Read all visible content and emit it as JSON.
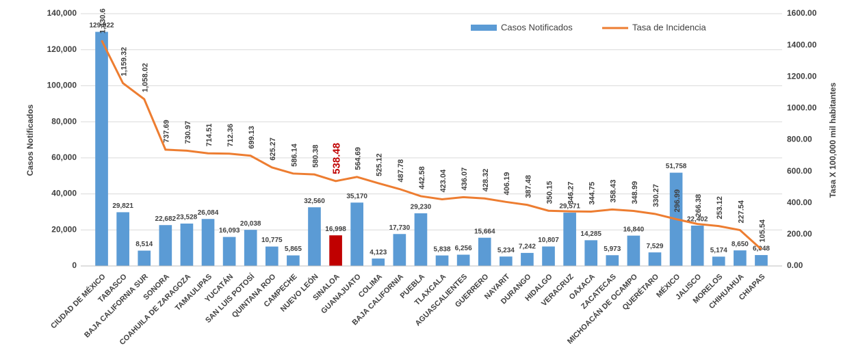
{
  "chart_data": {
    "type": "bar-line",
    "categories": [
      "CIUDAD DE MÉXICO",
      "TABASCO",
      "BAJA CALIFORNIA SUR",
      "SONORA",
      "COAHUILA DE ZARAGOZA",
      "TAMAULIPAS",
      "YUCATÁN",
      "SAN LUIS POTOSÍ",
      "QUINTANA ROO",
      "CAMPECHE",
      "NUEVO LEÓN",
      "SINALOA",
      "GUANAJUATO",
      "COLIMA",
      "BAJA CALIFORNIA",
      "PUEBLA",
      "TLAXCALA",
      "AGUASCALIENTES",
      "GUERRERO",
      "NAYARIT",
      "DURANGO",
      "HIDALGO",
      "VERACRUZ",
      "OAXACA",
      "ZACATECAS",
      "MICHOACÁN DE OCAMPO",
      "QUERÉTARO",
      "MÉXICO",
      "JALISCO",
      "MORELOS",
      "CHIHUAHUA",
      "CHIAPAS"
    ],
    "series": [
      {
        "name": "Casos Notificados",
        "type": "bar",
        "color": "#5b9bd5",
        "highlight": {
          "category": "SINALOA",
          "color": "#c00000"
        },
        "values": [
          129922,
          29821,
          8514,
          22682,
          23528,
          26084,
          16093,
          20038,
          10775,
          5865,
          32560,
          16998,
          35170,
          4123,
          17730,
          29230,
          5838,
          6256,
          15664,
          5234,
          7242,
          10807,
          29571,
          14285,
          5973,
          16840,
          7529,
          51758,
          22402,
          5174,
          8650,
          6048
        ],
        "value_labels": [
          "129,922",
          "29,821",
          "8,514",
          "22,682",
          "23,528",
          "26,084",
          "16,093",
          "20,038",
          "10,775",
          "5,865",
          "32,560",
          "16,998",
          "35,170",
          "4,123",
          "17,730",
          "29,230",
          "5,838",
          "6,256",
          "15,664",
          "5,234",
          "7,242",
          "10,807",
          "29,571",
          "14,285",
          "5,973",
          "16,840",
          "7,529",
          "51,758",
          "22,402",
          "5,174",
          "8,650",
          "6,048"
        ]
      },
      {
        "name": "Tasa de Incidencia",
        "type": "line",
        "axis": "y2",
        "color": "#ed7d31",
        "values": [
          1430.6,
          1159.32,
          1058.02,
          737.69,
          730.97,
          714.51,
          712.36,
          699.13,
          625.27,
          586.14,
          580.38,
          538.48,
          564.69,
          525.12,
          487.78,
          442.58,
          423.04,
          436.07,
          428.32,
          406.19,
          387.48,
          350.15,
          346.27,
          344.75,
          358.43,
          348.99,
          330.27,
          296.99,
          266.38,
          253.12,
          227.54,
          105.54
        ],
        "value_labels": [
          "1,430.6",
          "1,159.32",
          "1,058.02",
          "737.69",
          "730.97",
          "714.51",
          "712.36",
          "699.13",
          "625.27",
          "586.14",
          "580.38",
          "538.48",
          "564.69",
          "525.12",
          "487.78",
          "442.58",
          "423.04",
          "436.07",
          "428.32",
          "406.19",
          "387.48",
          "350.15",
          "346.27",
          "344.75",
          "358.43",
          "348.99",
          "330.27",
          "296.99",
          "266.38",
          "253.12",
          "227.54",
          "105.54"
        ]
      }
    ],
    "y_label": "Casos Notificados",
    "y2_label": "Tasa X 100,000 mil habitantes",
    "ylim": [
      0,
      140000
    ],
    "yticks": [
      0,
      {
        "value": 20000,
        "label": "20,000"
      },
      {
        "value": 40000,
        "label": "40,000"
      },
      {
        "value": 60000,
        "label": "60,000"
      },
      {
        "value": 80000,
        "label": "80,000"
      },
      {
        "value": 100000,
        "label": "100,000"
      },
      {
        "value": 120000,
        "label": "120,000"
      },
      {
        "value": 140000,
        "label": "140,000"
      }
    ],
    "y2lim": [
      0,
      1600
    ],
    "y2ticks": [
      {
        "value": 0,
        "label": "0.00"
      },
      {
        "value": 200,
        "label": "200.00"
      },
      {
        "value": 400,
        "label": "400.00"
      },
      {
        "value": 600,
        "label": "600.00"
      },
      {
        "value": 800,
        "label": "800.00"
      },
      {
        "value": 1000,
        "label": "1000.00"
      },
      {
        "value": 1200,
        "label": "1200.00"
      },
      {
        "value": 1400,
        "label": "1400.00"
      },
      {
        "value": 1600,
        "label": "1600.00"
      }
    ],
    "grid": true,
    "legend": "top-right"
  }
}
